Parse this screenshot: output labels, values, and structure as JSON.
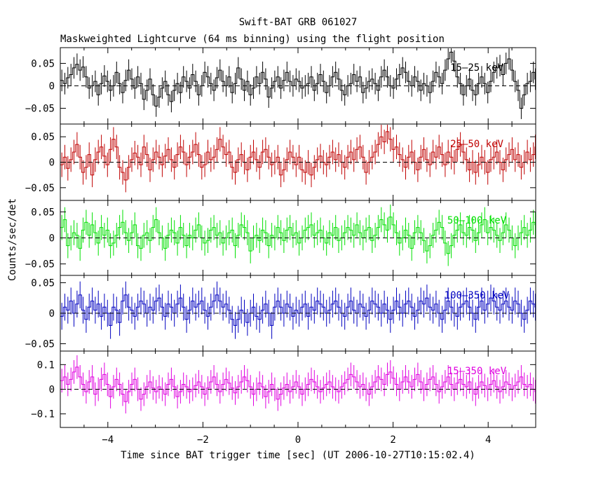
{
  "chart_data": {
    "type": "line",
    "title": "Swift-BAT GRB 061027",
    "subtitle": "Maskweighted Lightcurve (64 ms binning) using the flight position",
    "xlabel": "Time since BAT trigger time [sec] (UT 2006-10-27T10:15:02.4)",
    "ylabel": "Counts/sec/det",
    "xlim": [
      -5,
      5
    ],
    "xticks": [
      -4,
      -2,
      0,
      2,
      4
    ],
    "xtick_labels": [
      "−4",
      "−2",
      "0",
      "2",
      "4"
    ],
    "bin_width_s": 0.064,
    "grid": false,
    "legend": "none",
    "panels": [
      {
        "name": "15–25 keV",
        "color": "#000000",
        "ylim": [
          -0.085,
          0.085
        ],
        "yticks": [
          -0.05,
          0,
          0.05
        ],
        "ytick_labels": [
          "−0.05",
          "0",
          "0.05"
        ],
        "error": 0.024,
        "values": [
          0.012,
          0.005,
          0.018,
          0.025,
          0.04,
          0.048,
          0.035,
          0.042,
          0.02,
          -0.005,
          0.0,
          0.01,
          -0.02,
          0.005,
          0.022,
          0.01,
          -0.01,
          0.0,
          0.03,
          0.005,
          -0.015,
          0.012,
          0.035,
          0.015,
          -0.005,
          0.02,
          0.005,
          -0.03,
          -0.01,
          0.015,
          -0.02,
          -0.045,
          -0.025,
          -0.005,
          0.01,
          -0.02,
          -0.035,
          -0.01,
          0.005,
          -0.015,
          0.02,
          0.01,
          -0.005,
          0.025,
          0.01,
          -0.02,
          0.0,
          0.03,
          0.02,
          0.005,
          -0.01,
          0.018,
          0.035,
          0.01,
          0.0,
          0.02,
          -0.015,
          0.005,
          0.04,
          0.015,
          -0.01,
          0.01,
          -0.02,
          -0.005,
          0.02,
          0.005,
          0.03,
          0.015,
          -0.025,
          -0.005,
          0.01,
          0.02,
          -0.005,
          0.012,
          0.03,
          0.01,
          0.0,
          0.015,
          0.01,
          -0.005,
          0.0,
          0.005,
          0.02,
          -0.01,
          0.005,
          0.025,
          0.01,
          -0.015,
          0.0,
          0.02,
          0.03,
          0.015,
          -0.01,
          -0.02,
          0.0,
          0.005,
          0.025,
          0.01,
          0.02,
          -0.015,
          -0.005,
          0.01,
          0.015,
          0.005,
          -0.01,
          0.02,
          0.035,
          0.02,
          0.0,
          -0.005,
          0.015,
          0.025,
          0.04,
          0.03,
          0.01,
          0.0,
          0.02,
          0.01,
          -0.01,
          0.005,
          0.0,
          -0.015,
          0.01,
          0.03,
          0.02,
          0.005,
          0.035,
          0.06,
          0.075,
          0.055,
          0.02,
          0.005,
          -0.02,
          0.0,
          0.015,
          -0.01,
          -0.02,
          0.005,
          0.02,
          0.005,
          -0.015,
          0.01,
          0.03,
          0.04,
          0.045,
          0.025,
          0.05,
          0.06,
          0.035,
          0.01,
          -0.01,
          -0.05,
          -0.02,
          0.005,
          0.01,
          0.03,
          0.015,
          -0.005,
          0.01,
          0.02,
          0.005,
          0.015,
          0.03,
          0.025,
          0.01,
          -0.01,
          0.005,
          0.02,
          0.01,
          0.0,
          0.025,
          0.04,
          0.015,
          -0.005,
          0.0,
          0.015,
          -0.01,
          0.005,
          0.03,
          0.02,
          0.0,
          -0.01,
          0.005,
          -0.005
        ]
      },
      {
        "name": "25–50 keV",
        "color": "#c00000",
        "ylim": [
          -0.075,
          0.075
        ],
        "yticks": [
          -0.05,
          0,
          0.05
        ],
        "ytick_labels": [
          "−0.05",
          "0",
          "0.05"
        ],
        "error": 0.024,
        "values": [
          -0.005,
          0.01,
          -0.012,
          0.005,
          0.02,
          0.035,
          0.01,
          -0.02,
          -0.01,
          0.015,
          -0.025,
          0.005,
          0.02,
          0.03,
          0.012,
          -0.005,
          0.025,
          0.045,
          0.03,
          -0.01,
          -0.02,
          -0.035,
          -0.01,
          0.005,
          0.018,
          0.01,
          -0.005,
          0.03,
          0.015,
          -0.015,
          0.005,
          0.02,
          0.01,
          -0.005,
          0.012,
          0.025,
          0.005,
          -0.01,
          0.015,
          0.03,
          0.02,
          -0.005,
          0.01,
          0.02,
          0.035,
          0.015,
          -0.01,
          -0.005,
          0.02,
          0.005,
          0.01,
          0.025,
          0.045,
          0.03,
          0.015,
          0.02,
          -0.01,
          -0.02,
          0.005,
          0.015,
          0.0,
          -0.015,
          0.01,
          0.02,
          0.005,
          -0.01,
          0.02,
          0.025,
          0.01,
          -0.005,
          0.0,
          0.01,
          -0.025,
          -0.015,
          0.005,
          0.02,
          0.01,
          -0.005,
          0.01,
          -0.015,
          -0.02,
          0.0,
          -0.025,
          -0.01,
          0.005,
          0.012,
          0.0,
          -0.005,
          0.01,
          0.02,
          0.005,
          0.015,
          0.0,
          -0.01,
          0.01,
          0.02,
          0.005,
          0.025,
          0.03,
          0.01,
          -0.02,
          0.0,
          0.01,
          0.02,
          0.035,
          0.05,
          0.04,
          0.06,
          0.045,
          0.025,
          0.03,
          0.015,
          0.005,
          -0.01,
          0.01,
          0.02,
          0.0,
          -0.015,
          0.01,
          0.025,
          0.005,
          -0.005,
          0.02,
          0.01,
          0.03,
          0.015,
          -0.005,
          0.02,
          0.01,
          0.0,
          0.025,
          0.035,
          0.02,
          0.005,
          -0.015,
          0.0,
          -0.02,
          -0.005,
          0.01,
          0.0,
          -0.02,
          0.005,
          0.01,
          0.02,
          0.0,
          -0.015,
          0.005,
          0.015,
          0.025,
          0.005,
          0.015,
          -0.01,
          0.0,
          0.02,
          0.005,
          0.015,
          0.03,
          0.01,
          -0.005,
          0.02,
          0.005,
          -0.01,
          0.01,
          0.0,
          0.015,
          0.025,
          0.01,
          0.03,
          0.015,
          -0.005,
          0.01,
          0.02,
          0.005,
          0.015,
          -0.005,
          0.01,
          0.0,
          -0.02,
          -0.005,
          0.025,
          0.01,
          -0.01,
          -0.03,
          -0.015
        ]
      },
      {
        "name": "50–100 keV",
        "color": "#00e000",
        "ylim": [
          -0.072,
          0.072
        ],
        "yticks": [
          -0.05,
          0,
          0.05
        ],
        "ytick_labels": [
          "−0.05",
          "0",
          "0.05"
        ],
        "error": 0.024,
        "values": [
          0.02,
          0.035,
          -0.015,
          0.0,
          0.01,
          0.005,
          -0.02,
          0.015,
          0.03,
          0.005,
          0.025,
          0.01,
          -0.01,
          0.02,
          0.005,
          0.015,
          -0.015,
          -0.01,
          0.005,
          0.02,
          0.03,
          0.01,
          -0.005,
          0.01,
          0.025,
          -0.015,
          -0.02,
          0.005,
          0.01,
          -0.005,
          0.02,
          0.035,
          0.01,
          0.0,
          -0.02,
          0.005,
          0.015,
          0.01,
          -0.01,
          0.02,
          0.005,
          -0.015,
          0.005,
          0.0,
          0.015,
          0.025,
          0.0,
          -0.01,
          -0.005,
          0.015,
          0.02,
          0.005,
          0.01,
          -0.01,
          0.0,
          0.01,
          0.015,
          -0.015,
          0.005,
          0.025,
          0.02,
          0.01,
          -0.025,
          0.0,
          0.005,
          -0.005,
          0.015,
          0.01,
          -0.015,
          0.005,
          0.0,
          0.02,
          0.01,
          -0.005,
          0.015,
          0.02,
          0.005,
          0.01,
          -0.01,
          0.0,
          0.015,
          0.02,
          0.025,
          0.005,
          0.01,
          0.015,
          0.0,
          -0.01,
          0.01,
          0.005,
          0.02,
          -0.005,
          0.0,
          0.01,
          0.02,
          0.015,
          0.005,
          0.025,
          0.01,
          0.0,
          0.015,
          0.02,
          -0.005,
          0.005,
          0.02,
          0.035,
          0.025,
          0.015,
          0.04,
          0.025,
          0.01,
          -0.01,
          0.0,
          0.015,
          0.005,
          -0.02,
          0.01,
          0.02,
          0.01,
          -0.005,
          -0.025,
          -0.015,
          0.005,
          0.015,
          0.03,
          0.02,
          -0.01,
          -0.03,
          -0.015,
          0.005,
          0.015,
          0.025,
          0.01,
          0.005,
          0.02,
          0.015,
          -0.005,
          0.01,
          0.025,
          0.035,
          0.01,
          0.02,
          0.015,
          0.005,
          -0.005,
          0.01,
          0.025,
          0.015,
          0.0,
          -0.015,
          0.0,
          0.01,
          0.02,
          0.005,
          0.015,
          0.03,
          0.025,
          0.01,
          0.005,
          0.02,
          0.01,
          0.0,
          -0.01,
          0.02,
          0.03,
          0.015,
          0.0,
          -0.005,
          0.01,
          0.02,
          0.005,
          0.015,
          0.03,
          0.02,
          0.005,
          0.01,
          0.02,
          -0.005,
          0.01,
          0.025,
          0.015,
          0.0,
          -0.015,
          -0.005
        ]
      },
      {
        "name": "100–350 keV",
        "color": "#0000c0",
        "ylim": [
          -0.062,
          0.062
        ],
        "yticks": [
          -0.05,
          0,
          0.05
        ],
        "ytick_labels": [
          "−0.05",
          "0",
          "0.05"
        ],
        "error": 0.022,
        "values": [
          -0.005,
          0.01,
          0.005,
          0.02,
          0.0,
          0.015,
          0.03,
          0.005,
          -0.01,
          0.01,
          0.02,
          0.005,
          0.015,
          -0.005,
          0.01,
          0.0,
          -0.02,
          0.01,
          0.005,
          -0.015,
          0.02,
          0.03,
          0.01,
          0.005,
          -0.005,
          0.01,
          0.02,
          0.015,
          0.0,
          0.01,
          0.005,
          0.02,
          0.025,
          0.01,
          -0.005,
          0.015,
          0.01,
          0.0,
          0.015,
          0.025,
          0.01,
          -0.01,
          0.005,
          0.02,
          0.01,
          0.015,
          0.02,
          0.005,
          -0.005,
          0.01,
          0.02,
          0.03,
          0.02,
          0.01,
          0.015,
          0.005,
          -0.01,
          -0.02,
          -0.01,
          0.005,
          0.0,
          -0.015,
          0.0,
          0.01,
          -0.005,
          -0.01,
          0.005,
          0.015,
          0.0,
          -0.02,
          0.01,
          0.02,
          0.01,
          0.0,
          0.015,
          0.01,
          -0.005,
          0.005,
          0.0,
          0.01,
          0.015,
          -0.005,
          0.01,
          0.005,
          0.02,
          0.015,
          0.01,
          0.0,
          0.005,
          0.015,
          0.02,
          0.01,
          0.0,
          -0.005,
          0.01,
          0.02,
          0.005,
          0.0,
          0.015,
          0.01,
          -0.005,
          0.005,
          0.02,
          0.015,
          0.01,
          0.0,
          0.015,
          0.005,
          -0.01,
          0.005,
          0.02,
          0.01,
          0.0,
          0.015,
          0.02,
          0.01,
          -0.005,
          0.005,
          0.02,
          0.015,
          0.025,
          0.01,
          0.005,
          0.015,
          0.0,
          -0.01,
          0.005,
          0.02,
          0.01,
          0.0,
          -0.005,
          0.01,
          0.015,
          0.02,
          0.01,
          0.0,
          -0.01,
          0.01,
          0.02,
          0.005,
          0.015,
          0.025,
          0.02,
          0.01,
          0.005,
          0.015,
          0.02,
          0.01,
          0.005,
          0.02,
          0.015,
          0.0,
          -0.01,
          0.005,
          0.02,
          0.015,
          0.01,
          -0.005,
          0.0,
          0.015,
          0.02,
          0.005,
          0.01,
          0.025,
          0.015,
          0.0,
          0.01,
          0.02,
          0.005,
          -0.005,
          0.01,
          0.015,
          0.02,
          0.01,
          0.005,
          0.015,
          0.02,
          0.01,
          0.0,
          0.01,
          0.015,
          0.005,
          -0.005,
          0.01,
          0.015,
          0.01,
          0.0
        ]
      },
      {
        "name": "15–350 keV",
        "color": "#e000e0",
        "ylim": [
          -0.155,
          0.155
        ],
        "yticks": [
          -0.1,
          0,
          0.1
        ],
        "ytick_labels": [
          "−0.1",
          "0",
          "0.1"
        ],
        "error": 0.048,
        "values": [
          0.035,
          0.05,
          0.02,
          0.04,
          0.07,
          0.09,
          0.05,
          0.02,
          -0.01,
          0.03,
          0.05,
          -0.02,
          0.0,
          0.04,
          0.06,
          0.02,
          -0.03,
          0.01,
          0.04,
          0.02,
          -0.02,
          -0.05,
          -0.01,
          0.02,
          0.04,
          0.0,
          -0.04,
          -0.02,
          0.01,
          0.03,
          0.005,
          -0.01,
          0.01,
          0.0,
          -0.02,
          0.02,
          0.04,
          0.01,
          -0.03,
          -0.01,
          0.02,
          0.01,
          -0.01,
          0.0,
          0.015,
          0.03,
          0.01,
          -0.02,
          0.005,
          0.03,
          0.05,
          0.02,
          -0.01,
          0.02,
          0.04,
          0.025,
          0.005,
          -0.015,
          0.01,
          0.03,
          0.05,
          0.035,
          0.01,
          -0.02,
          0.0,
          0.025,
          0.01,
          -0.03,
          -0.01,
          0.02,
          0.0,
          -0.04,
          -0.02,
          0.005,
          0.02,
          -0.01,
          0.01,
          0.03,
          0.01,
          -0.02,
          0.0,
          0.02,
          0.04,
          0.03,
          0.01,
          -0.01,
          0.005,
          0.02,
          0.03,
          0.01,
          0.0,
          -0.01,
          0.01,
          0.025,
          0.04,
          0.06,
          0.05,
          0.03,
          0.01,
          0.02,
          0.0,
          -0.02,
          0.01,
          0.03,
          0.05,
          0.04,
          0.02,
          0.06,
          0.07,
          0.045,
          0.02,
          0.0,
          0.03,
          0.05,
          0.03,
          0.01,
          0.04,
          0.06,
          0.03,
          0.0,
          0.02,
          0.04,
          0.05,
          0.02,
          -0.01,
          0.01,
          0.03,
          0.05,
          0.02,
          0.0,
          0.025,
          0.04,
          0.02,
          0.01,
          0.03,
          0.0,
          -0.02,
          0.01,
          0.03,
          0.015,
          0.0,
          0.02,
          0.035,
          0.01,
          -0.01,
          0.01,
          0.03,
          0.02,
          0.0,
          0.015,
          0.03,
          0.05,
          0.02,
          0.01,
          0.02,
          0.0,
          -0.01,
          0.015,
          0.03,
          0.02,
          0.0,
          0.01,
          0.03,
          0.04,
          0.02,
          0.01,
          0.03,
          0.015,
          0.0,
          0.02,
          0.035,
          0.05,
          0.03,
          0.01,
          0.02,
          0.0,
          -0.015,
          0.005,
          0.02,
          0.01,
          -0.02,
          0.0,
          0.02,
          -0.01,
          -0.03
        ]
      }
    ]
  }
}
